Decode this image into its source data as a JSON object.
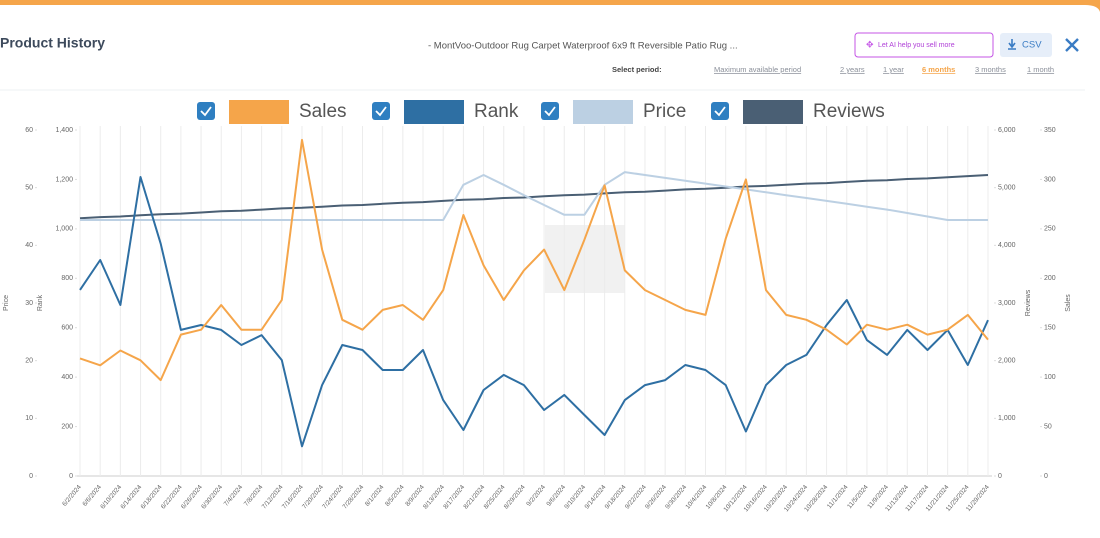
{
  "header": {
    "title": "Product History",
    "product": "- MontVoo-Outdoor Rug Carpet Waterproof 6x9 ft Reversible Patio Rug ...",
    "ai_button": "Let AI help you sell more",
    "csv_button": "CSV",
    "period_label": "Select period:",
    "periods": [
      "Maximum available period",
      "2 years",
      "1 year",
      "6 months",
      "3 months",
      "1 month"
    ],
    "active_period": 3
  },
  "chart_data": {
    "type": "line",
    "grid": "x",
    "categories": [
      "6/2/2024",
      "6/6/2024",
      "6/10/2024",
      "6/14/2024",
      "6/18/2024",
      "6/22/2024",
      "6/26/2024",
      "6/30/2024",
      "7/4/2024",
      "7/8/2024",
      "7/12/2024",
      "7/16/2024",
      "7/20/2024",
      "7/24/2024",
      "7/28/2024",
      "8/1/2024",
      "8/5/2024",
      "8/9/2024",
      "8/13/2024",
      "8/17/2024",
      "8/21/2024",
      "8/25/2024",
      "8/29/2024",
      "9/2/2024",
      "9/6/2024",
      "9/10/2024",
      "9/14/2024",
      "9/18/2024",
      "9/22/2024",
      "9/26/2024",
      "9/30/2024",
      "10/4/2024",
      "10/8/2024",
      "10/12/2024",
      "10/16/2024",
      "10/20/2024",
      "10/24/2024",
      "10/28/2024",
      "11/1/2024",
      "11/5/2024",
      "11/9/2024",
      "11/13/2024",
      "11/17/2024",
      "11/21/2024",
      "11/25/2024",
      "11/29/2024"
    ],
    "axes": {
      "price": {
        "label": "Price",
        "lim": [
          0,
          60
        ],
        "ticks": [
          0,
          10,
          20,
          30,
          40,
          50,
          60
        ]
      },
      "rank": {
        "label": "Rank",
        "lim": [
          0,
          1400
        ],
        "ticks": [
          0,
          200,
          400,
          600,
          800,
          {
            "value": 1000,
            "label": "1,000"
          },
          {
            "value": 1200,
            "label": "1,200"
          },
          {
            "value": 1400,
            "label": "1,400"
          }
        ]
      },
      "reviews": {
        "label": "Reviews",
        "lim": [
          0,
          6000
        ],
        "ticks": [
          0,
          {
            "value": 1000,
            "label": "1,000"
          },
          {
            "value": 2000,
            "label": "2,000"
          },
          {
            "value": 3000,
            "label": "3,000"
          },
          {
            "value": 4000,
            "label": "4,000"
          },
          {
            "value": 5000,
            "label": "5,000"
          },
          {
            "value": 6000,
            "label": "6,000"
          }
        ]
      },
      "sales": {
        "label": "Sales",
        "lim": [
          0,
          350
        ],
        "ticks": [
          0,
          50,
          100,
          150,
          200,
          250,
          300,
          350
        ]
      }
    },
    "series": [
      {
        "name": "Sales",
        "color": "#f5a54a",
        "axis": "sales",
        "values": [
          119,
          112,
          127,
          117,
          97,
          143,
          148,
          173,
          148,
          148,
          178,
          340,
          229,
          158,
          148,
          168,
          173,
          158,
          188,
          264,
          213,
          178,
          208,
          229,
          188,
          239,
          294,
          208,
          188,
          178,
          168,
          163,
          240,
          300,
          188,
          163,
          158,
          148,
          133,
          153,
          148,
          153,
          143,
          148,
          163,
          138
        ]
      },
      {
        "name": "Rank",
        "color": "#2e6fa3",
        "axis": "rank",
        "values": [
          753,
          874,
          692,
          1210,
          940,
          591,
          611,
          591,
          530,
          570,
          469,
          120,
          368,
          530,
          510,
          429,
          429,
          510,
          307,
          186,
          348,
          409,
          368,
          267,
          328,
          247,
          166,
          307,
          368,
          388,
          449,
          429,
          368,
          180,
          368,
          449,
          490,
          611,
          712,
          550,
          490,
          591,
          510,
          591,
          449,
          631
        ]
      },
      {
        "name": "Price",
        "color": "#bcd0e3",
        "axis": "price",
        "values": [
          44.4,
          44.4,
          44.4,
          44.4,
          44.4,
          44.4,
          44.4,
          44.4,
          44.4,
          44.4,
          44.4,
          44.4,
          44.4,
          44.4,
          44.4,
          44.4,
          44.4,
          44.4,
          44.4,
          50.5,
          52.2,
          50.5,
          48.7,
          47.0,
          45.3,
          45.3,
          50.5,
          52.7,
          52.2,
          51.7,
          51.2,
          50.7,
          50.2,
          49.7,
          49.2,
          48.7,
          48.2,
          47.7,
          47.2,
          46.7,
          46.2,
          45.6,
          45.0,
          44.4,
          44.4,
          44.4
        ]
      },
      {
        "name": "Reviews",
        "color": "#4a5f74",
        "axis": "reviews",
        "values": [
          4470,
          4490,
          4500,
          4520,
          4540,
          4550,
          4570,
          4590,
          4600,
          4620,
          4640,
          4650,
          4670,
          4690,
          4700,
          4720,
          4740,
          4750,
          4770,
          4790,
          4800,
          4820,
          4830,
          4850,
          4870,
          4880,
          4900,
          4920,
          4930,
          4950,
          4970,
          4980,
          5000,
          5020,
          5030,
          5050,
          5070,
          5080,
          5100,
          5120,
          5130,
          5150,
          5160,
          5180,
          5200,
          5220
        ]
      }
    ]
  }
}
